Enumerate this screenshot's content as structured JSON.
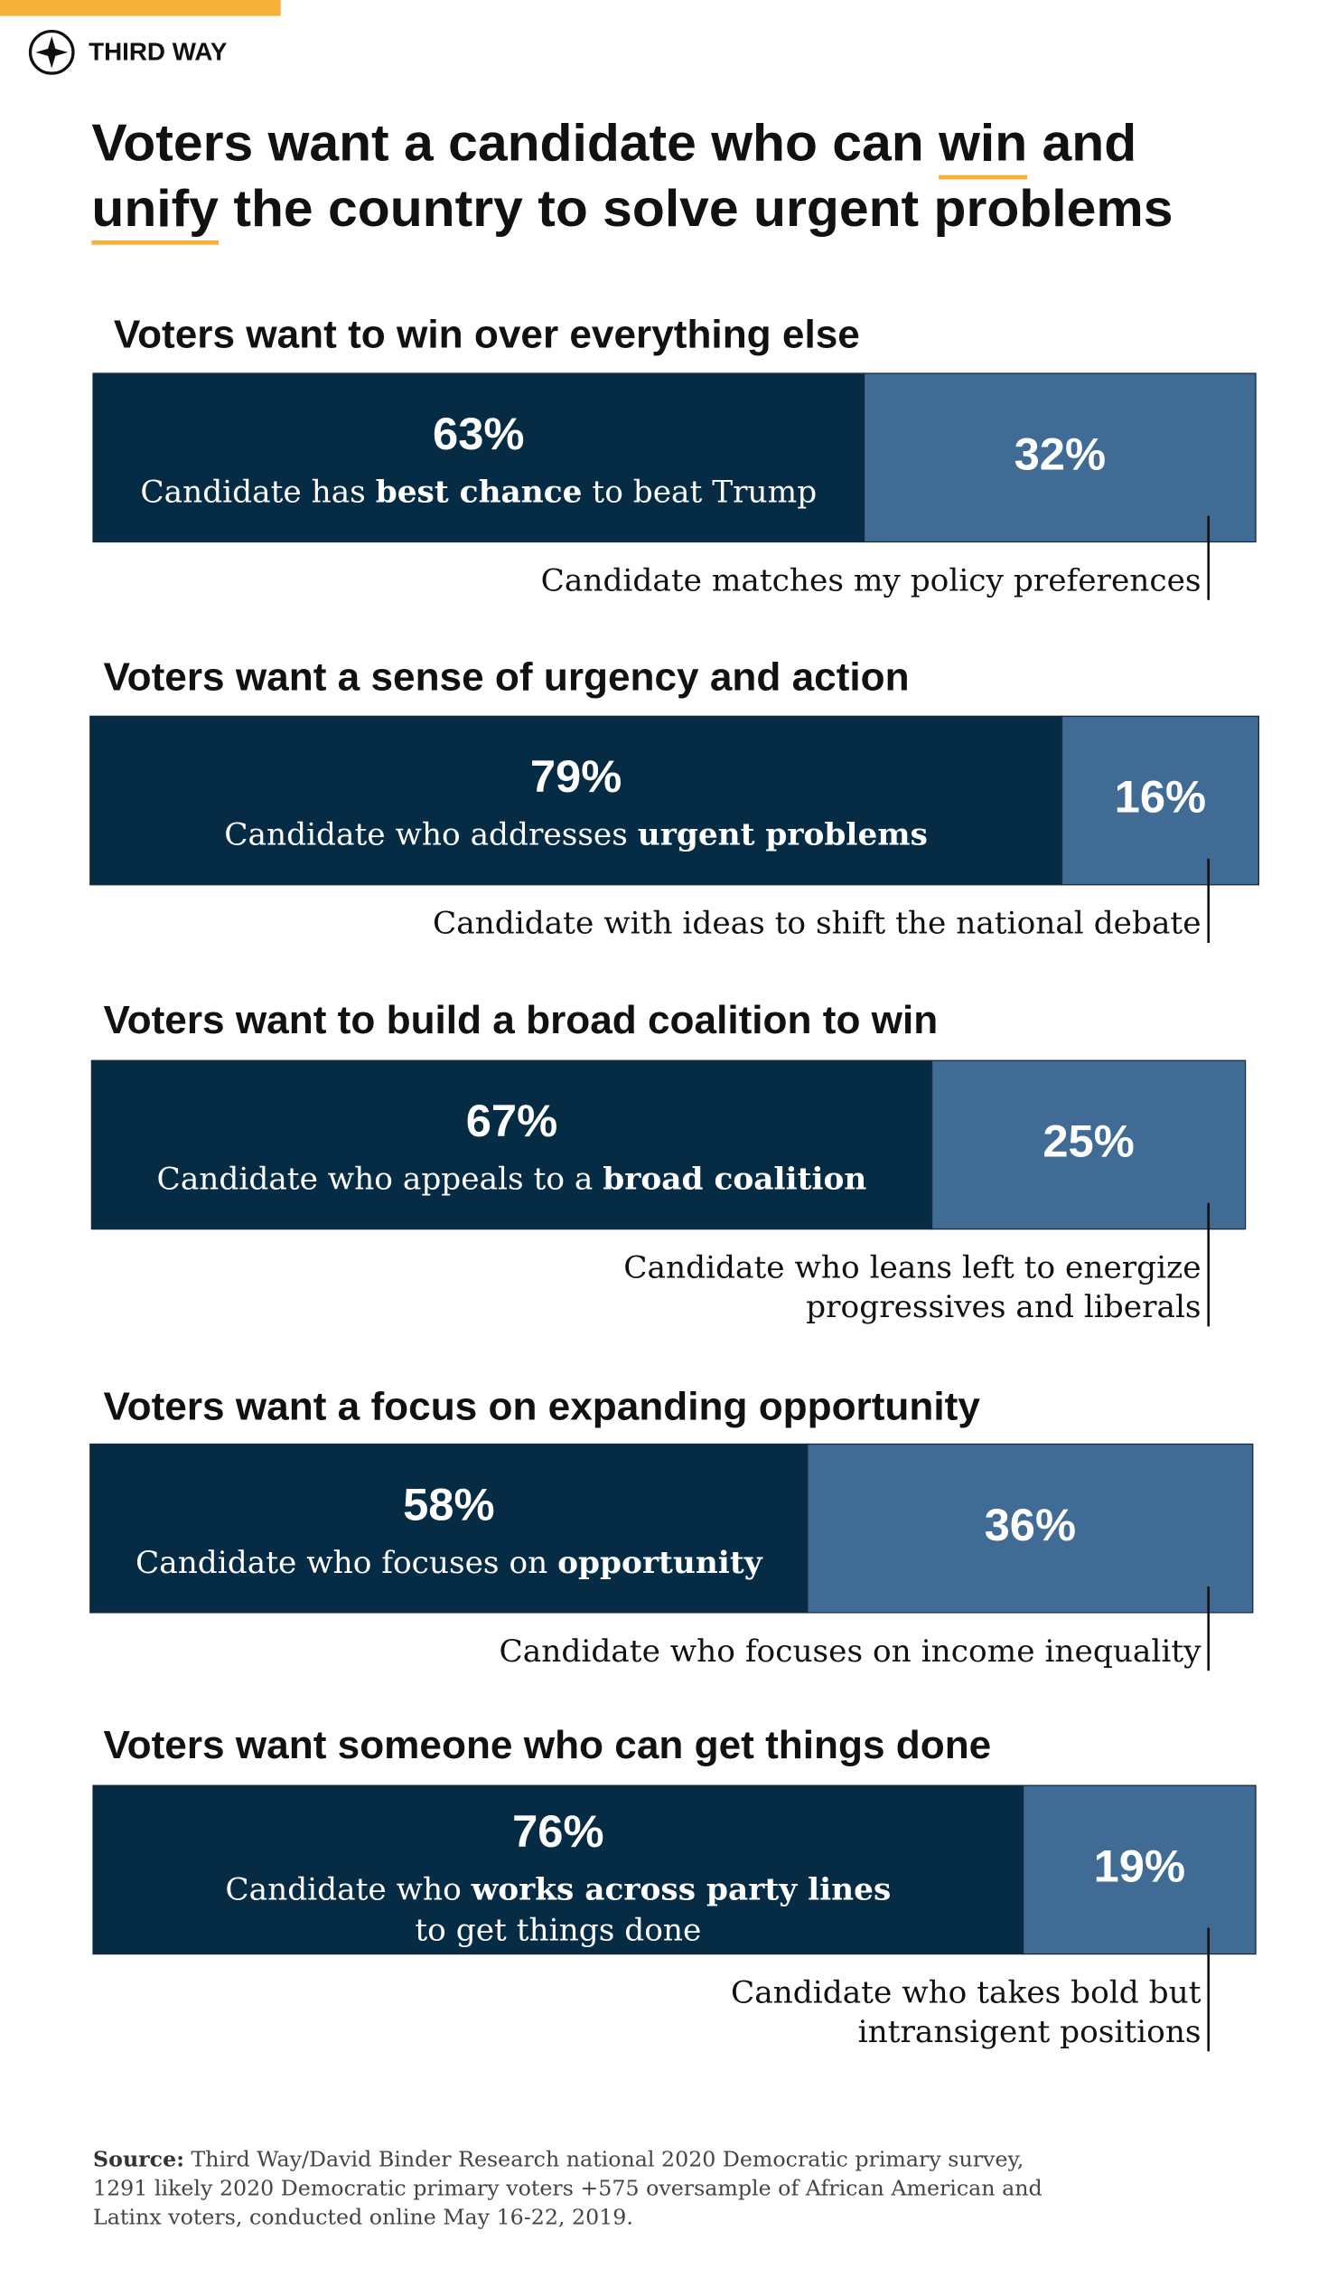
{
  "brand": "THIRD WAY",
  "title": [
    [
      {
        "text": "Voters want a candidate who can "
      },
      {
        "text": "win",
        "underline": true
      },
      {
        "text": " and"
      }
    ],
    [
      {
        "text": "unify",
        "underline": true
      },
      {
        "text": " the country to solve urgent problems"
      }
    ]
  ],
  "chart_data": [
    {
      "type": "bar",
      "orientation": "horizontal",
      "stacked": true,
      "title": "Voters want to win over everything else",
      "series": [
        {
          "name": [
            [
              {
                "text": "Candidate has "
              },
              {
                "text": "best chance",
                "bold": true
              },
              {
                "text": " to beat Trump"
              }
            ]
          ],
          "color": "#062b45",
          "values": [
            63
          ],
          "value_labels": [
            "63%"
          ]
        },
        {
          "name": [
            [
              {
                "text": "Candidate matches my policy preferences"
              }
            ]
          ],
          "color": "#3f6b94",
          "values": [
            32
          ],
          "value_labels": [
            "32%"
          ]
        }
      ]
    },
    {
      "type": "bar",
      "orientation": "horizontal",
      "stacked": true,
      "title": "Voters want a sense of urgency and action",
      "series": [
        {
          "name": [
            [
              {
                "text": "Candidate who addresses "
              },
              {
                "text": "urgent problems",
                "bold": true
              }
            ]
          ],
          "color": "#062b45",
          "values": [
            79
          ],
          "value_labels": [
            "79%"
          ]
        },
        {
          "name": [
            [
              {
                "text": "Candidate with ideas to shift the national debate"
              }
            ]
          ],
          "color": "#3f6b94",
          "values": [
            16
          ],
          "value_labels": [
            "16%"
          ]
        }
      ]
    },
    {
      "type": "bar",
      "orientation": "horizontal",
      "stacked": true,
      "title": "Voters want to build a broad coalition to win",
      "series": [
        {
          "name": [
            [
              {
                "text": "Candidate who appeals to a "
              },
              {
                "text": "broad coalition",
                "bold": true
              }
            ]
          ],
          "color": "#062b45",
          "values": [
            67
          ],
          "value_labels": [
            "67%"
          ]
        },
        {
          "name": [
            [
              {
                "text": "Candidate who leans left to energize"
              }
            ],
            [
              {
                "text": "progressives and liberals"
              }
            ]
          ],
          "color": "#3f6b94",
          "values": [
            25
          ],
          "value_labels": [
            "25%"
          ]
        }
      ]
    },
    {
      "type": "bar",
      "orientation": "horizontal",
      "stacked": true,
      "title": "Voters want a focus on expanding opportunity",
      "series": [
        {
          "name": [
            [
              {
                "text": "Candidate who focuses on "
              },
              {
                "text": "opportunity",
                "bold": true
              }
            ]
          ],
          "color": "#062b45",
          "values": [
            58
          ],
          "value_labels": [
            "58%"
          ]
        },
        {
          "name": [
            [
              {
                "text": "Candidate who focuses on income inequality"
              }
            ]
          ],
          "color": "#3f6b94",
          "values": [
            36
          ],
          "value_labels": [
            "36%"
          ]
        }
      ]
    },
    {
      "type": "bar",
      "orientation": "horizontal",
      "stacked": true,
      "title": "Voters want someone who can get things done",
      "series": [
        {
          "name": [
            [
              {
                "text": "Candidate who "
              },
              {
                "text": "works across party lines",
                "bold": true
              }
            ],
            [
              {
                "text": "to get things done"
              }
            ]
          ],
          "color": "#062b45",
          "values": [
            76
          ],
          "value_labels": [
            "76%"
          ]
        },
        {
          "name": [
            [
              {
                "text": "Candidate who takes bold but"
              }
            ],
            [
              {
                "text": "intransigent positions"
              }
            ]
          ],
          "color": "#3f6b94",
          "values": [
            19
          ],
          "value_labels": [
            "19%"
          ]
        }
      ]
    }
  ],
  "source": {
    "label": "Source:",
    "lines": [
      " Third Way/David Binder Research national 2020 Democratic primary survey,",
      "1291 likely 2020 Democratic primary voters +575 oversample of African American and",
      "Latinx voters, conducted online May 16-22, 2019."
    ]
  }
}
